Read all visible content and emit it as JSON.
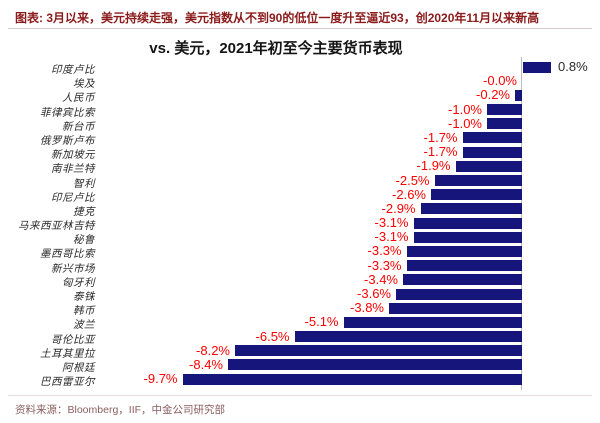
{
  "header": {
    "title": "图表: 3月以来，美元持续走强，美元指数从不到90的低位一度升至逼近93，创2020年11月以来新高",
    "title_color": "#8b1a1a"
  },
  "chart_data": {
    "type": "bar",
    "orientation": "horizontal",
    "title": "vs. 美元，2021年初至今主要货币表现",
    "unit": "%",
    "xlim": [
      -10.5,
      1.5
    ],
    "grid": false,
    "legend": "none",
    "categories": [
      "印度卢比",
      "埃及",
      "人民币",
      "菲律宾比索",
      "新台币",
      "俄罗斯卢布",
      "新加坡元",
      "南非兰特",
      "智利",
      "印尼卢比",
      "捷克",
      "马来西亚林吉特",
      "秘鲁",
      "墨西哥比索",
      "新兴市场",
      "匈牙利",
      "泰铢",
      "韩币",
      "波兰",
      "哥伦比亚",
      "土耳其里拉",
      "阿根廷",
      "巴西雷亚尔"
    ],
    "values": [
      0.8,
      -0.0,
      -0.2,
      -1.0,
      -1.0,
      -1.7,
      -1.7,
      -1.9,
      -2.5,
      -2.6,
      -2.9,
      -3.1,
      -3.1,
      -3.3,
      -3.3,
      -3.4,
      -3.6,
      -3.8,
      -5.1,
      -6.5,
      -8.2,
      -8.4,
      -9.7
    ],
    "value_labels": [
      "0.8%",
      "-0.0%",
      "-0.2%",
      "-1.0%",
      "-1.0%",
      "-1.7%",
      "-1.7%",
      "-1.9%",
      "-2.5%",
      "-2.6%",
      "-2.9%",
      "-3.1%",
      "-3.1%",
      "-3.3%",
      "-3.3%",
      "-3.4%",
      "-3.6%",
      "-3.8%",
      "-5.1%",
      "-6.5%",
      "-8.2%",
      "-8.4%",
      "-9.7%"
    ],
    "bar_color": "#15157b",
    "negative_label_color": "#ff0000",
    "positive_label_color": "#2b2b2b"
  },
  "footer": {
    "source": "资料来源：Bloomberg，IIF，中金公司研究部"
  }
}
